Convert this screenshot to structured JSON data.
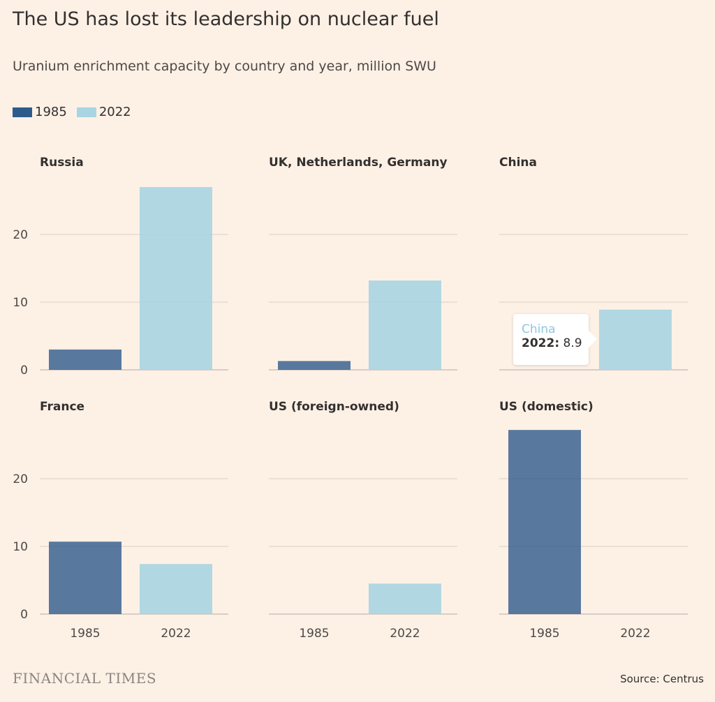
{
  "title": "The US has lost its leadership on nuclear fuel",
  "subtitle": "Uranium enrichment capacity by country and year, million SWU",
  "legend": [
    {
      "label": "1985",
      "color": "#2f5a8c"
    },
    {
      "label": "2022",
      "color": "#a9d4e2"
    }
  ],
  "tooltip": {
    "name": "China",
    "year": "2022:",
    "value": "8.9"
  },
  "footer": {
    "brand": "FINANCIAL TIMES",
    "source": "Source: Centrus"
  },
  "chart_data": {
    "type": "bar",
    "layout": "small multiples, 2 rows x 3 columns",
    "categories": [
      "1985",
      "2022"
    ],
    "ylim": [
      0,
      30
    ],
    "yticks": [
      0,
      10,
      20
    ],
    "grid": true,
    "legend_position": "top-left",
    "colors": {
      "1985": "#2f5a8c",
      "2022": "#a9d4e2"
    },
    "panels": [
      {
        "title": "Russia",
        "values": [
          3.0,
          27.0
        ]
      },
      {
        "title": "UK, Netherlands, Germany",
        "values": [
          1.3,
          13.2
        ]
      },
      {
        "title": "China",
        "values": [
          0,
          8.9
        ]
      },
      {
        "title": "France",
        "values": [
          10.7,
          7.4
        ]
      },
      {
        "title": "US (foreign-owned)",
        "values": [
          0,
          4.5
        ]
      },
      {
        "title": "US (domestic)",
        "values": [
          27.2,
          0
        ]
      }
    ]
  }
}
